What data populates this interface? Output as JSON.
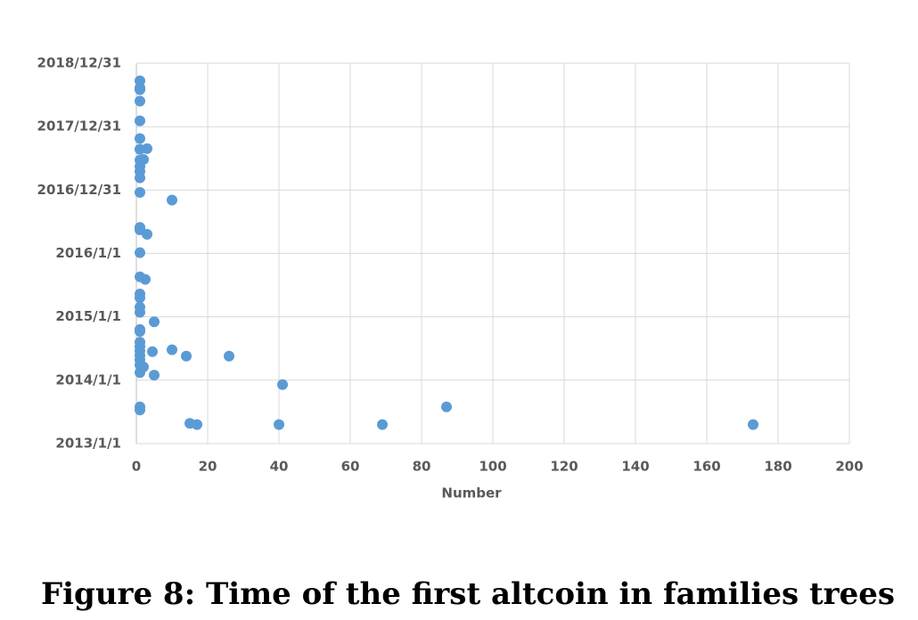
{
  "chart_data": {
    "type": "scatter",
    "x_label": "Number",
    "color": "#5b9bd5",
    "grid": true,
    "xlim": [
      0,
      200
    ],
    "xticks": [
      0,
      20,
      40,
      60,
      80,
      100,
      120,
      140,
      160,
      180,
      200
    ],
    "ylim": [
      2013,
      2018.997
    ],
    "yticks": [
      {
        "value": 2013,
        "label": "2013/1/1"
      },
      {
        "value": 2014,
        "label": "2014/1/1"
      },
      {
        "value": 2015,
        "label": "2015/1/1"
      },
      {
        "value": 2016,
        "label": "2016/1/1"
      },
      {
        "value": 2016.997,
        "label": "2016/12/31"
      },
      {
        "value": 2017.997,
        "label": "2017/12/31"
      },
      {
        "value": 2018.997,
        "label": "2018/12/31"
      }
    ],
    "x": [
      1,
      1,
      1,
      1,
      1,
      1,
      1,
      3,
      2,
      1,
      1,
      1,
      1,
      1,
      10,
      1,
      1,
      3,
      1,
      1,
      2.5,
      1,
      1,
      1,
      1,
      5,
      1,
      1,
      1,
      1,
      1,
      4.5,
      10,
      1,
      14,
      26,
      1,
      2,
      1,
      1,
      5,
      41,
      1,
      1,
      15,
      17,
      40,
      69,
      87,
      173
    ],
    "values": [
      2018.72,
      2018.61,
      2018.58,
      2018.4,
      2018.09,
      2017.81,
      2017.64,
      2017.65,
      2017.48,
      2017.47,
      2017.37,
      2017.29,
      2017.19,
      2016.96,
      2016.84,
      2016.41,
      2016.37,
      2016.3,
      2016.01,
      2015.63,
      2015.59,
      2015.36,
      2015.3,
      2015.15,
      2015.07,
      2014.92,
      2014.8,
      2014.77,
      2014.6,
      2014.53,
      2014.46,
      2014.45,
      2014.48,
      2014.39,
      2014.38,
      2014.38,
      2014.32,
      2014.21,
      2014.24,
      2014.12,
      2014.08,
      2013.93,
      2013.58,
      2013.53,
      2013.32,
      2013.3,
      2013.3,
      2013.3,
      2013.58,
      2013.3
    ]
  },
  "caption": "Figure 8: Time of the first altcoin in families trees"
}
